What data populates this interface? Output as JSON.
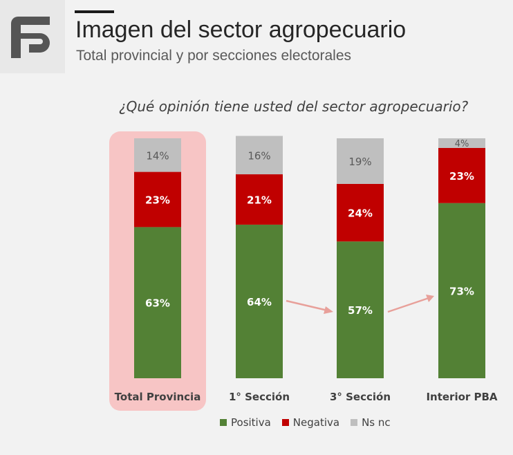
{
  "header": {
    "title": "Imagen del sector agropecuario",
    "subtitle": "Total provincial y por secciones electorales"
  },
  "colors": {
    "positiva": "#538135",
    "negativa": "#c00000",
    "nsnc": "#bfbfbf",
    "highlight": "#f7c5c5",
    "arrow": "#e8a09a"
  },
  "logo": {
    "icon": "brand-logo-icon"
  },
  "chart_data": {
    "type": "bar",
    "stacked": true,
    "title": "¿Qué opinión tiene usted del sector agropecuario?",
    "categories": [
      "Total Provincia",
      "1° Sección",
      "3° Sección",
      "Interior PBA"
    ],
    "series": [
      {
        "name": "Positiva",
        "values": [
          63,
          64,
          57,
          73
        ],
        "labels": [
          "63%",
          "64%",
          "57%",
          "73%"
        ]
      },
      {
        "name": "Negativa",
        "values": [
          23,
          21,
          24,
          23
        ],
        "labels": [
          "23%",
          "21%",
          "24%",
          "23%"
        ]
      },
      {
        "name": "Ns nc",
        "values": [
          14,
          16,
          19,
          4
        ],
        "labels": [
          "14%",
          "16%",
          "19%",
          "4%"
        ]
      }
    ],
    "ylim": [
      0,
      100
    ],
    "highlighted_category": "Total Provincia",
    "legend_position": "bottom-center"
  }
}
